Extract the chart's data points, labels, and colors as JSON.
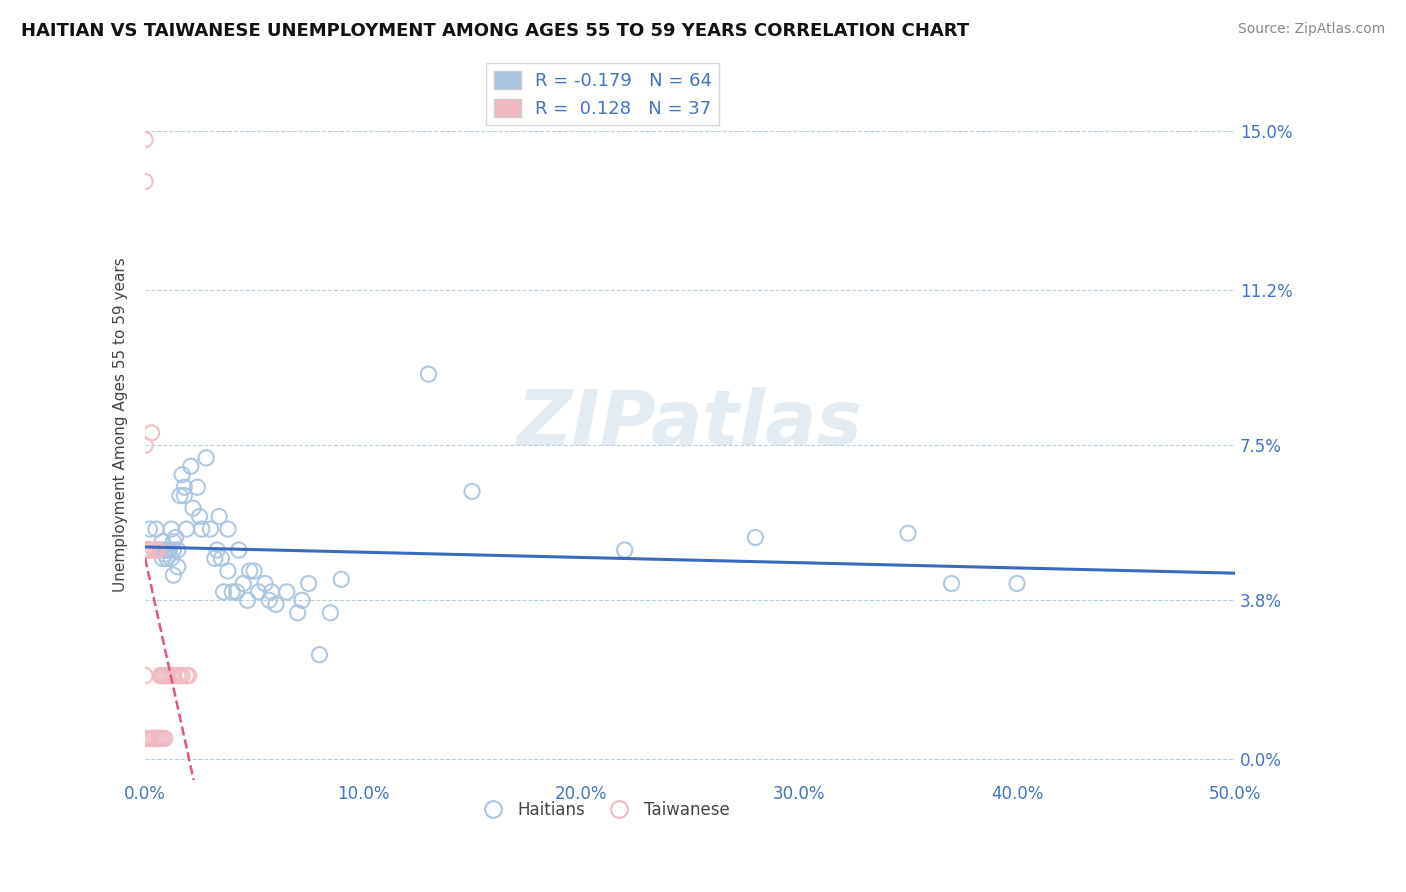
{
  "title": "HAITIAN VS TAIWANESE UNEMPLOYMENT AMONG AGES 55 TO 59 YEARS CORRELATION CHART",
  "source": "Source: ZipAtlas.com",
  "ylabel": "Unemployment Among Ages 55 to 59 years",
  "xlim": [
    0.0,
    0.5
  ],
  "ylim": [
    -0.005,
    0.165
  ],
  "yticks": [
    0.0,
    0.038,
    0.075,
    0.112,
    0.15
  ],
  "ytick_labels": [
    "0.0%",
    "3.8%",
    "7.5%",
    "11.2%",
    "15.0%"
  ],
  "xticks": [
    0.0,
    0.1,
    0.2,
    0.3,
    0.4,
    0.5
  ],
  "xtick_labels": [
    "0.0%",
    "10.0%",
    "20.0%",
    "30.0%",
    "40.0%",
    "50.0%"
  ],
  "background_color": "#ffffff",
  "grid_color": "#b8cfe0",
  "legend_R1": "R = -0.179",
  "legend_N1": "N = 64",
  "legend_R2": "R =  0.128",
  "legend_N2": "N = 37",
  "haitian_color": "#a8c4e0",
  "taiwanese_color": "#f0b8c0",
  "haitian_trend_color": "#3a6abf",
  "taiwanese_trend_color": "#e05878",
  "haitian_x": [
    0.002,
    0.005,
    0.007,
    0.008,
    0.008,
    0.009,
    0.009,
    0.01,
    0.01,
    0.011,
    0.011,
    0.012,
    0.012,
    0.013,
    0.013,
    0.013,
    0.014,
    0.015,
    0.015,
    0.016,
    0.017,
    0.018,
    0.018,
    0.019,
    0.021,
    0.022,
    0.024,
    0.025,
    0.026,
    0.028,
    0.03,
    0.032,
    0.033,
    0.034,
    0.035,
    0.036,
    0.038,
    0.038,
    0.04,
    0.042,
    0.043,
    0.045,
    0.047,
    0.048,
    0.05,
    0.052,
    0.055,
    0.057,
    0.058,
    0.06,
    0.065,
    0.07,
    0.072,
    0.075,
    0.08,
    0.085,
    0.09,
    0.13,
    0.15,
    0.22,
    0.28,
    0.35,
    0.37,
    0.4
  ],
  "haitian_y": [
    0.055,
    0.055,
    0.05,
    0.052,
    0.048,
    0.05,
    0.049,
    0.05,
    0.048,
    0.05,
    0.05,
    0.055,
    0.048,
    0.052,
    0.05,
    0.044,
    0.053,
    0.05,
    0.046,
    0.063,
    0.068,
    0.065,
    0.063,
    0.055,
    0.07,
    0.06,
    0.065,
    0.058,
    0.055,
    0.072,
    0.055,
    0.048,
    0.05,
    0.058,
    0.048,
    0.04,
    0.055,
    0.045,
    0.04,
    0.04,
    0.05,
    0.042,
    0.038,
    0.045,
    0.045,
    0.04,
    0.042,
    0.038,
    0.04,
    0.037,
    0.04,
    0.035,
    0.038,
    0.042,
    0.025,
    0.035,
    0.043,
    0.092,
    0.064,
    0.05,
    0.053,
    0.054,
    0.042,
    0.042
  ],
  "taiwanese_x": [
    0.0,
    0.0,
    0.0,
    0.0,
    0.0,
    0.0,
    0.001,
    0.001,
    0.001,
    0.001,
    0.002,
    0.002,
    0.002,
    0.003,
    0.003,
    0.004,
    0.004,
    0.005,
    0.005,
    0.006,
    0.006,
    0.007,
    0.007,
    0.008,
    0.008,
    0.008,
    0.009,
    0.009,
    0.01,
    0.011,
    0.012,
    0.013,
    0.015,
    0.016,
    0.017,
    0.019,
    0.02
  ],
  "taiwanese_y": [
    0.148,
    0.138,
    0.075,
    0.05,
    0.02,
    0.005,
    0.05,
    0.05,
    0.05,
    0.005,
    0.05,
    0.05,
    0.005,
    0.078,
    0.005,
    0.05,
    0.005,
    0.05,
    0.005,
    0.05,
    0.005,
    0.02,
    0.005,
    0.02,
    0.02,
    0.005,
    0.02,
    0.005,
    0.02,
    0.02,
    0.02,
    0.02,
    0.02,
    0.02,
    0.02,
    0.02,
    0.02
  ]
}
